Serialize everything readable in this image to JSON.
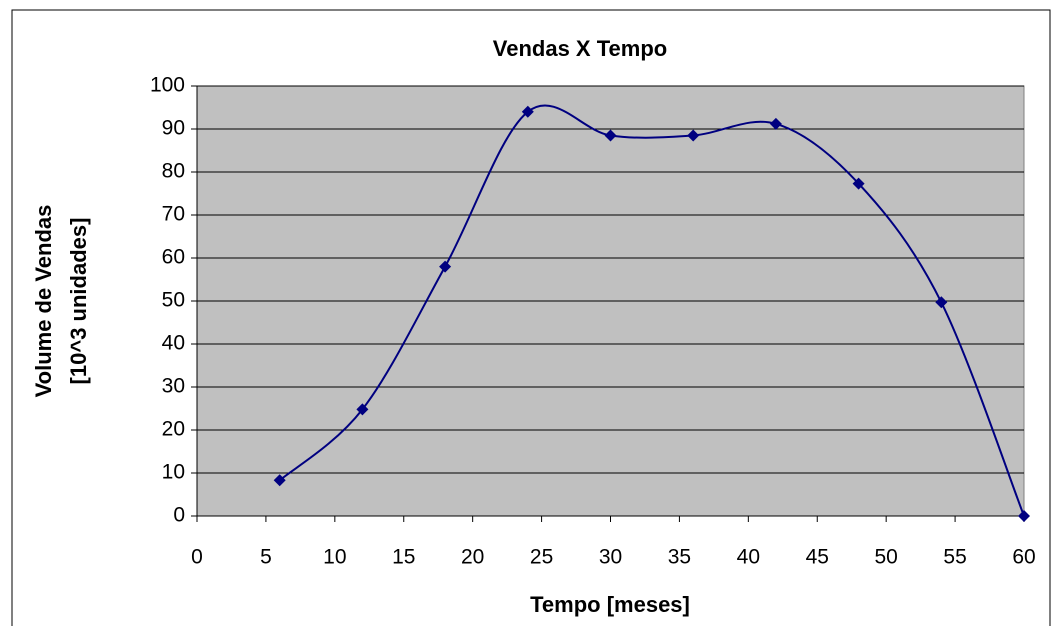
{
  "chart_data": {
    "type": "line",
    "smooth": true,
    "title": "Vendas X Tempo",
    "xlabel": "Tempo [meses]",
    "ylabel": [
      "Volume de Vendas",
      "[10^3 unidades]"
    ],
    "x": [
      6,
      12,
      18,
      24,
      30,
      36,
      42,
      48,
      54,
      60
    ],
    "series": [
      {
        "name": "Vendas",
        "color": "#000080",
        "values": [
          8.3,
          24.8,
          58,
          94,
          88.5,
          88.5,
          91.2,
          77.3,
          49.7,
          0
        ]
      }
    ],
    "xlim": [
      0,
      60
    ],
    "xticks": [
      0,
      5,
      10,
      15,
      20,
      25,
      30,
      35,
      40,
      45,
      50,
      55,
      60
    ],
    "ylim": [
      0,
      100
    ],
    "yticks": [
      0,
      10,
      20,
      30,
      40,
      50,
      60,
      70,
      80,
      90,
      100
    ],
    "grid": true,
    "plot_background": "#c0c0c0"
  }
}
